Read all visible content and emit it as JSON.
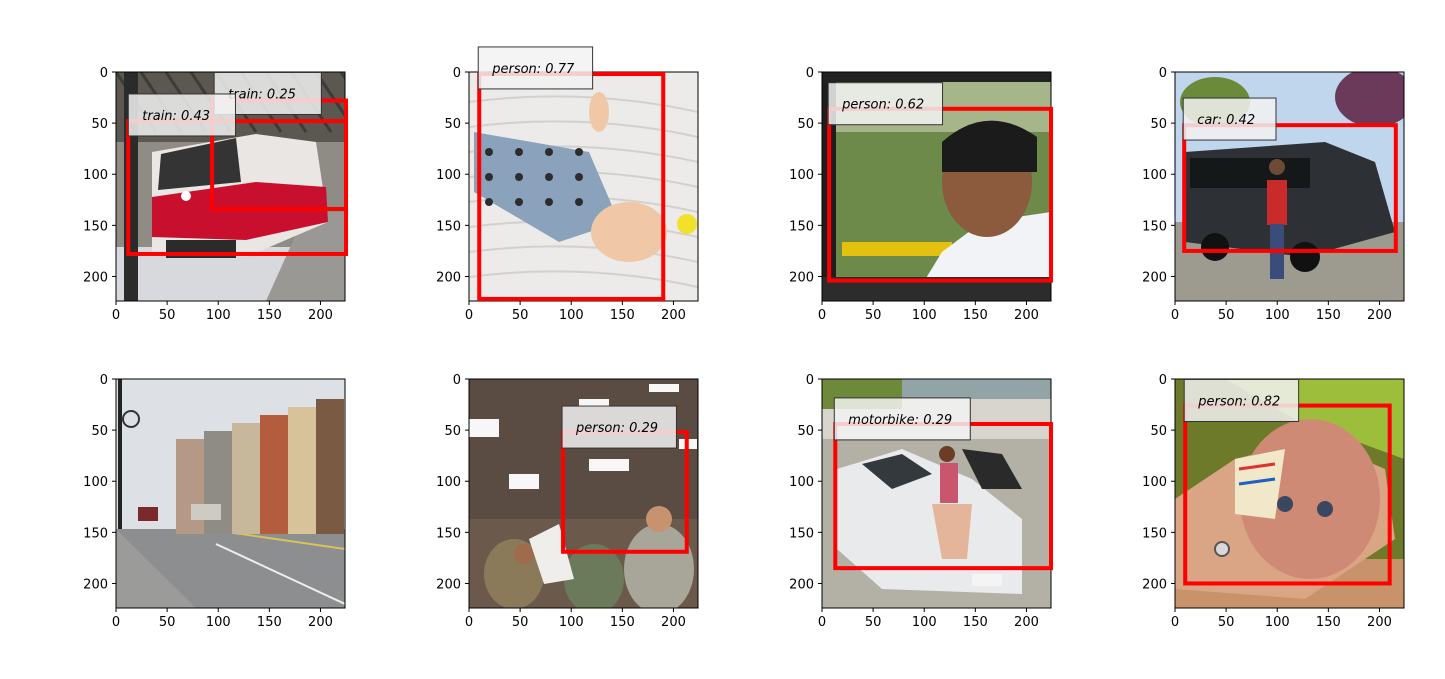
{
  "figure": {
    "axis_ticks": {
      "x": [
        "0",
        "50",
        "100",
        "150",
        "200"
      ],
      "y": [
        "0",
        "50",
        "100",
        "150",
        "200"
      ]
    },
    "detection_box_color": "#ff0000",
    "panels": [
      {
        "id": "p1",
        "scene": "red and white electric train at a station platform",
        "detections": [
          {
            "label": "train: 0.25",
            "box": [
              94,
              28,
              225,
              134
            ],
            "tag_anchor": [
              97,
              22
            ]
          },
          {
            "label": "train: 0.43",
            "box": [
              12,
              48,
              225,
              178
            ],
            "tag_anchor": [
              13,
              43
            ]
          }
        ]
      },
      {
        "id": "p2",
        "scene": "baby lying on a white blanket",
        "detections": [
          {
            "label": "person: 0.77",
            "box": [
              10,
              2,
              190,
              222
            ],
            "tag_anchor": [
              10,
              -3
            ]
          }
        ]
      },
      {
        "id": "p3",
        "scene": "man seated in a vehicle",
        "detections": [
          {
            "label": "person: 0.62",
            "box": [
              7,
              36,
              224,
              204
            ],
            "tag_anchor": [
              7,
              32
            ]
          }
        ]
      },
      {
        "id": "p4",
        "scene": "man standing beside a stretch SUV",
        "detections": [
          {
            "label": "car: 0.42",
            "box": [
              9,
              52,
              216,
              175
            ],
            "tag_anchor": [
              9,
              47
            ]
          }
        ]
      },
      {
        "id": "p5",
        "scene": "small town street with old buildings",
        "detections": []
      },
      {
        "id": "p6",
        "scene": "group of people under an office ceiling",
        "detections": [
          {
            "label": "person: 0.29",
            "box": [
              92,
              52,
              213,
              169
            ],
            "tag_anchor": [
              92,
              48
            ]
          }
        ]
      },
      {
        "id": "p7",
        "scene": "woman sitting on a white car",
        "detections": [
          {
            "label": "motorbike: 0.29",
            "box": [
              13,
              44,
              224,
              185
            ],
            "tag_anchor": [
              13,
              40
            ]
          }
        ]
      },
      {
        "id": "p8",
        "scene": "baby held in an arm",
        "detections": [
          {
            "label": "person: 0.82",
            "box": [
              10,
              26,
              210,
              200
            ],
            "tag_anchor": [
              10,
              22
            ]
          }
        ]
      }
    ]
  }
}
